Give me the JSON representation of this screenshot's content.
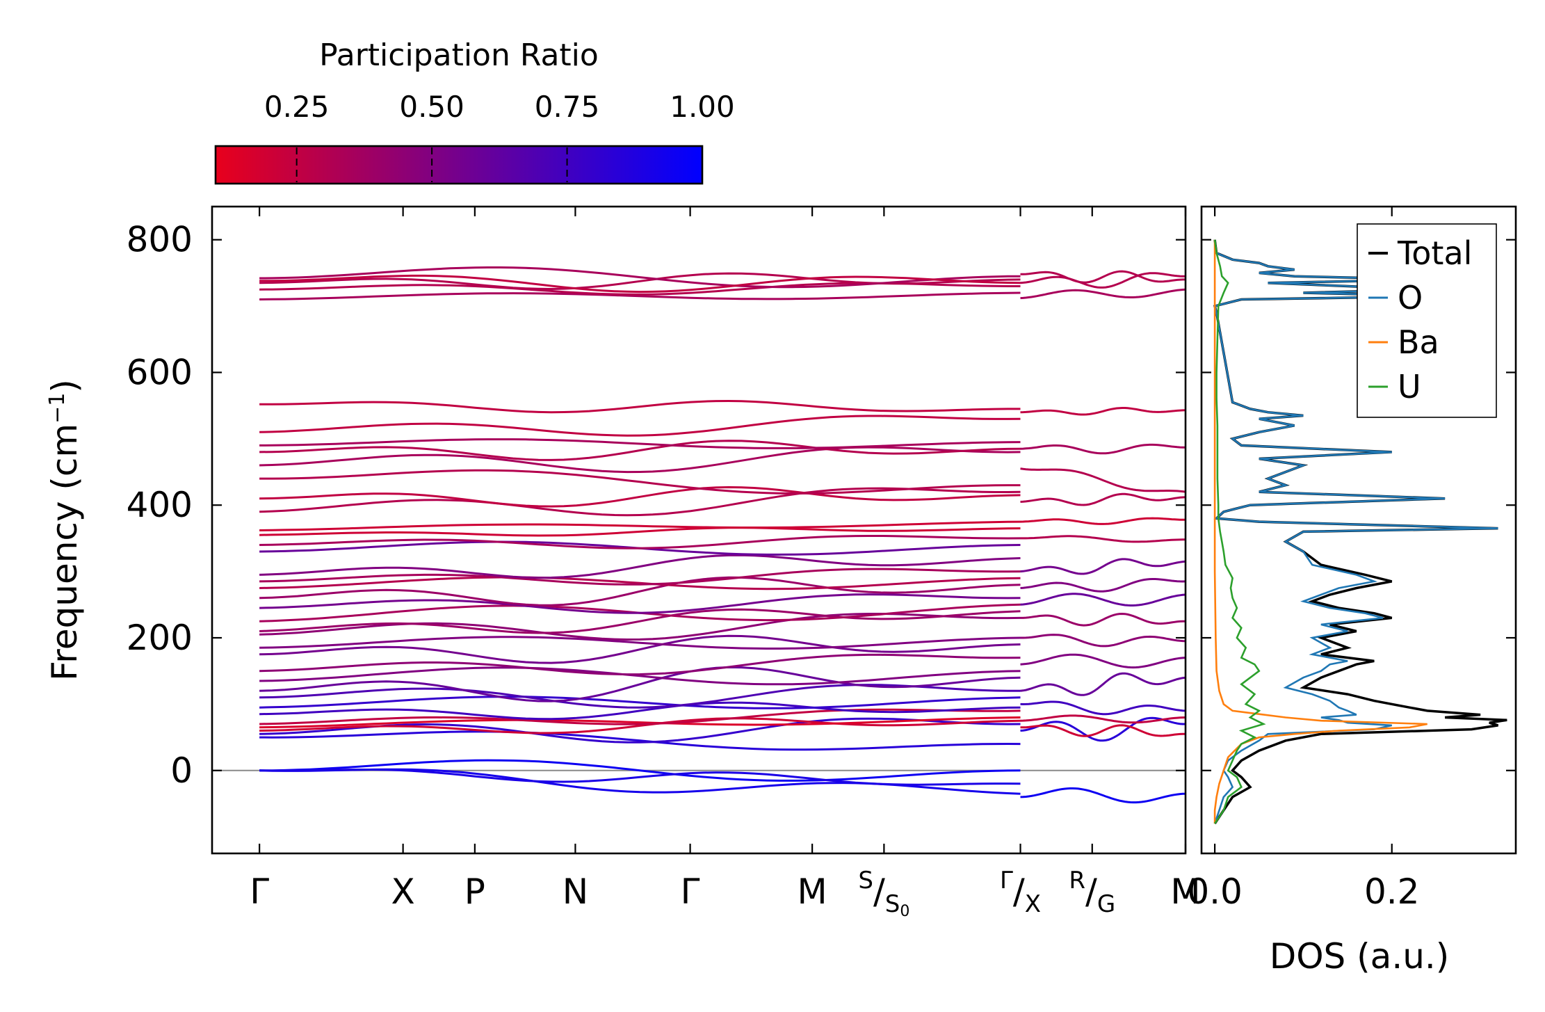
{
  "chart_data": [
    {
      "type": "line",
      "name": "phonon-dispersion",
      "title": "",
      "ylabel": "Frequency (cm",
      "ylabel_sup": "−1",
      "ylabel_close": ")",
      "ylim": [
        -125,
        850
      ],
      "yticks": [
        0,
        200,
        400,
        600,
        800
      ],
      "zero_line": true,
      "path_labels": [
        {
          "label": "Γ",
          "k": 0.0
        },
        {
          "label": "X",
          "k": 1.0
        },
        {
          "label": "P",
          "k": 1.5
        },
        {
          "label": "N",
          "k": 2.2
        },
        {
          "label": "Γ",
          "k": 3.0
        },
        {
          "label": "M",
          "k": 3.85
        },
        {
          "label": "S",
          "sub_label": "S",
          "sub_index": "0",
          "k": 4.35
        },
        {
          "label": "Γ",
          "sub_label": "X",
          "k": 5.3
        },
        {
          "label": "R",
          "sub_label": "G",
          "k": 5.8
        },
        {
          "label": "M",
          "k": 6.45
        }
      ],
      "k_range": [
        -0.33,
        6.45
      ],
      "segments": [
        [
          0.0,
          5.3
        ],
        [
          5.3,
          6.45
        ]
      ],
      "colorbar": {
        "title": "Participation Ratio",
        "range": [
          0.1,
          1.0
        ],
        "ticks": [
          "0.25",
          "0.50",
          "0.75",
          "1.00"
        ],
        "tick_values": [
          0.25,
          0.5,
          0.75,
          1.0
        ],
        "colors": [
          "#e8001c",
          "#0000ff"
        ]
      },
      "bands_segment1": [
        {
          "f0": 0,
          "f1": 0,
          "amp": 20,
          "pr": 0.95
        },
        {
          "f0": 0,
          "f1": -35,
          "amp": 15,
          "pr": 0.92
        },
        {
          "f0": 0,
          "f1": -20,
          "amp": 10,
          "pr": 0.9
        },
        {
          "f0": 50,
          "f1": 40,
          "amp": 15,
          "pr": 0.85
        },
        {
          "f0": 55,
          "f1": 70,
          "amp": 20,
          "pr": 0.8
        },
        {
          "f0": 60,
          "f1": 75,
          "amp": 10,
          "pr": 0.2
        },
        {
          "f0": 65,
          "f1": 80,
          "amp": 8,
          "pr": 0.15
        },
        {
          "f0": 70,
          "f1": 90,
          "amp": 10,
          "pr": 0.25
        },
        {
          "f0": 85,
          "f1": 95,
          "amp": 12,
          "pr": 0.75
        },
        {
          "f0": 95,
          "f1": 110,
          "amp": 15,
          "pr": 0.8
        },
        {
          "f0": 110,
          "f1": 120,
          "amp": 20,
          "pr": 0.7
        },
        {
          "f0": 120,
          "f1": 140,
          "amp": 25,
          "pr": 0.6
        },
        {
          "f0": 135,
          "f1": 150,
          "amp": 20,
          "pr": 0.5
        },
        {
          "f0": 150,
          "f1": 170,
          "amp": 15,
          "pr": 0.45
        },
        {
          "f0": 175,
          "f1": 190,
          "amp": 20,
          "pr": 0.55
        },
        {
          "f0": 185,
          "f1": 200,
          "amp": 15,
          "pr": 0.5
        },
        {
          "f0": 205,
          "f1": 230,
          "amp": 20,
          "pr": 0.45
        },
        {
          "f0": 210,
          "f1": 240,
          "amp": 15,
          "pr": 0.4
        },
        {
          "f0": 225,
          "f1": 250,
          "amp": 20,
          "pr": 0.35
        },
        {
          "f0": 245,
          "f1": 260,
          "amp": 15,
          "pr": 0.55
        },
        {
          "f0": 260,
          "f1": 280,
          "amp": 20,
          "pr": 0.4
        },
        {
          "f0": 275,
          "f1": 290,
          "amp": 15,
          "pr": 0.3
        },
        {
          "f0": 285,
          "f1": 300,
          "amp": 12,
          "pr": 0.35
        },
        {
          "f0": 295,
          "f1": 320,
          "amp": 15,
          "pr": 0.5
        },
        {
          "f0": 330,
          "f1": 340,
          "amp": 15,
          "pr": 0.6
        },
        {
          "f0": 340,
          "f1": 350,
          "amp": 10,
          "pr": 0.35
        },
        {
          "f0": 355,
          "f1": 365,
          "amp": 5,
          "pr": 0.2
        },
        {
          "f0": 362,
          "f1": 375,
          "amp": 6,
          "pr": 0.2
        },
        {
          "f0": 390,
          "f1": 420,
          "amp": 20,
          "pr": 0.3
        },
        {
          "f0": 410,
          "f1": 415,
          "amp": 15,
          "pr": 0.25
        },
        {
          "f0": 440,
          "f1": 430,
          "amp": 20,
          "pr": 0.3
        },
        {
          "f0": 460,
          "f1": 480,
          "amp": 20,
          "pr": 0.35
        },
        {
          "f0": 480,
          "f1": 485,
          "amp": 15,
          "pr": 0.3
        },
        {
          "f0": 490,
          "f1": 495,
          "amp": 10,
          "pr": 0.35
        },
        {
          "f0": 510,
          "f1": 530,
          "amp": 15,
          "pr": 0.25
        },
        {
          "f0": 552,
          "f1": 545,
          "amp": 10,
          "pr": 0.25
        },
        {
          "f0": 710,
          "f1": 720,
          "amp": 8,
          "pr": 0.35
        },
        {
          "f0": 725,
          "f1": 730,
          "amp": 10,
          "pr": 0.3
        },
        {
          "f0": 735,
          "f1": 740,
          "amp": 12,
          "pr": 0.3
        },
        {
          "f0": 742,
          "f1": 745,
          "amp": 20,
          "pr": 0.35
        },
        {
          "f0": 738,
          "f1": 735,
          "amp": 15,
          "pr": 0.25
        }
      ],
      "bands_segment2": [
        {
          "f0": -40,
          "f1": -35,
          "amp": 15,
          "pr": 0.95
        },
        {
          "f0": 60,
          "f1": 70,
          "amp": 20,
          "pr": 0.85
        },
        {
          "f0": 65,
          "f1": 55,
          "amp": 10,
          "pr": 0.2
        },
        {
          "f0": 75,
          "f1": 80,
          "amp": 8,
          "pr": 0.25
        },
        {
          "f0": 100,
          "f1": 90,
          "amp": 10,
          "pr": 0.75
        },
        {
          "f0": 120,
          "f1": 140,
          "amp": 15,
          "pr": 0.6
        },
        {
          "f0": 160,
          "f1": 170,
          "amp": 15,
          "pr": 0.5
        },
        {
          "f0": 200,
          "f1": 195,
          "amp": 10,
          "pr": 0.45
        },
        {
          "f0": 230,
          "f1": 225,
          "amp": 10,
          "pr": 0.4
        },
        {
          "f0": 250,
          "f1": 265,
          "amp": 15,
          "pr": 0.6
        },
        {
          "f0": 275,
          "f1": 285,
          "amp": 10,
          "pr": 0.5
        },
        {
          "f0": 300,
          "f1": 315,
          "amp": 10,
          "pr": 0.55
        },
        {
          "f0": 350,
          "f1": 348,
          "amp": 5,
          "pr": 0.3
        },
        {
          "f0": 375,
          "f1": 378,
          "amp": 5,
          "pr": 0.2
        },
        {
          "f0": 405,
          "f1": 412,
          "amp": 8,
          "pr": 0.3
        },
        {
          "f0": 455,
          "f1": 420,
          "amp": 10,
          "pr": 0.3
        },
        {
          "f0": 485,
          "f1": 487,
          "amp": 8,
          "pr": 0.35
        },
        {
          "f0": 540,
          "f1": 543,
          "amp": 5,
          "pr": 0.25
        },
        {
          "f0": 712,
          "f1": 725,
          "amp": 10,
          "pr": 0.35
        },
        {
          "f0": 735,
          "f1": 745,
          "amp": 12,
          "pr": 0.3
        },
        {
          "f0": 748,
          "f1": 740,
          "amp": 10,
          "pr": 0.3
        }
      ]
    },
    {
      "type": "line",
      "name": "density-of-states",
      "xlabel": "DOS (a.u.)",
      "xlim": [
        -0.015,
        0.34
      ],
      "ylim": [
        -125,
        850
      ],
      "xticks": [
        0.0,
        0.2
      ],
      "xtick_labels": [
        "0.0",
        "0.2"
      ],
      "legend": {
        "placement": "top-right",
        "entries": [
          "Total",
          "O",
          "Ba",
          "U"
        ]
      },
      "series": [
        {
          "name": "Total",
          "color": "#000000",
          "freq": [
            -80,
            -60,
            -40,
            -25,
            -10,
            0,
            15,
            30,
            45,
            55,
            62,
            68,
            72,
            76,
            80,
            84,
            90,
            95,
            105,
            115,
            125,
            140,
            150,
            160,
            165,
            175,
            185,
            200,
            210,
            220,
            230,
            237,
            245,
            255,
            265,
            275,
            285,
            295,
            310,
            330,
            345,
            360,
            365,
            375,
            380,
            390,
            400,
            410,
            420,
            430,
            440,
            460,
            470,
            480,
            490,
            500,
            510,
            520,
            530,
            535,
            540,
            545,
            555,
            690,
            700,
            710,
            715,
            720,
            725,
            735,
            740,
            745,
            750,
            755,
            760,
            765,
            770,
            780,
            800
          ],
          "dos": [
            0,
            0.01,
            0.02,
            0.04,
            0.03,
            0.02,
            0.03,
            0.05,
            0.08,
            0.12,
            0.29,
            0.32,
            0.31,
            0.33,
            0.26,
            0.3,
            0.24,
            0.22,
            0.18,
            0.15,
            0.1,
            0.12,
            0.14,
            0.16,
            0.18,
            0.12,
            0.15,
            0.12,
            0.16,
            0.13,
            0.2,
            0.18,
            0.14,
            0.11,
            0.13,
            0.16,
            0.2,
            0.17,
            0.12,
            0.1,
            0.08,
            0.1,
            0.32,
            0.05,
            0.002,
            0.01,
            0.04,
            0.26,
            0.05,
            0.08,
            0.06,
            0.1,
            0.05,
            0.2,
            0.03,
            0.02,
            0.05,
            0.09,
            0.05,
            0.1,
            0.06,
            0.04,
            0.02,
            0.002,
            0.0,
            0.03,
            0.26,
            0.1,
            0.24,
            0.06,
            0.25,
            0.09,
            0.05,
            0.09,
            0.06,
            0.05,
            0.02,
            0.002,
            0
          ]
        },
        {
          "name": "O",
          "color": "#1f77b4",
          "freq": [
            -80,
            -60,
            -40,
            -25,
            -10,
            0,
            15,
            30,
            45,
            55,
            62,
            68,
            72,
            76,
            80,
            84,
            90,
            95,
            105,
            115,
            125,
            140,
            150,
            160,
            165,
            175,
            185,
            200,
            210,
            220,
            230,
            237,
            245,
            255,
            265,
            275,
            285,
            295,
            310,
            330,
            345,
            360,
            365,
            375,
            380,
            390,
            400,
            410,
            420,
            430,
            440,
            460,
            470,
            480,
            490,
            500,
            510,
            520,
            530,
            535,
            540,
            545,
            555,
            690,
            700,
            710,
            715,
            720,
            725,
            735,
            740,
            745,
            750,
            755,
            760,
            765,
            770,
            780,
            800
          ],
          "dos": [
            0,
            0.005,
            0.01,
            0.02,
            0.015,
            0.01,
            0.015,
            0.03,
            0.05,
            0.06,
            0.18,
            0.2,
            0.15,
            0.14,
            0.12,
            0.16,
            0.15,
            0.14,
            0.13,
            0.11,
            0.08,
            0.1,
            0.12,
            0.13,
            0.15,
            0.11,
            0.13,
            0.11,
            0.15,
            0.12,
            0.19,
            0.17,
            0.13,
            0.1,
            0.12,
            0.14,
            0.18,
            0.16,
            0.11,
            0.1,
            0.08,
            0.1,
            0.32,
            0.05,
            0.002,
            0.01,
            0.04,
            0.26,
            0.05,
            0.08,
            0.06,
            0.1,
            0.05,
            0.2,
            0.03,
            0.02,
            0.05,
            0.09,
            0.05,
            0.1,
            0.06,
            0.04,
            0.02,
            0.002,
            0.0,
            0.03,
            0.26,
            0.1,
            0.24,
            0.06,
            0.25,
            0.09,
            0.05,
            0.09,
            0.06,
            0.05,
            0.02,
            0.002,
            0
          ]
        },
        {
          "name": "Ba",
          "color": "#ff7f0e",
          "freq": [
            -80,
            -60,
            -40,
            -20,
            0,
            20,
            40,
            50,
            55,
            60,
            65,
            70,
            75,
            80,
            85,
            90,
            100,
            120,
            150,
            200,
            300,
            400,
            500,
            600,
            700,
            800
          ],
          "dos": [
            0,
            0.0,
            0.002,
            0.005,
            0.01,
            0.015,
            0.03,
            0.05,
            0.09,
            0.14,
            0.22,
            0.24,
            0.12,
            0.08,
            0.05,
            0.02,
            0.01,
            0.005,
            0.002,
            0.001,
            0,
            0,
            0,
            0,
            0,
            0
          ]
        },
        {
          "name": "U",
          "color": "#2ca02c",
          "freq": [
            -80,
            -60,
            -40,
            -25,
            -10,
            0,
            15,
            30,
            40,
            50,
            60,
            70,
            80,
            90,
            100,
            115,
            130,
            150,
            160,
            170,
            185,
            200,
            215,
            230,
            245,
            260,
            275,
            290,
            310,
            330,
            345,
            360,
            380,
            400,
            440,
            480,
            520,
            560,
            600,
            700,
            720,
            735,
            745,
            760,
            780,
            800
          ],
          "dos": [
            0,
            0.01,
            0.015,
            0.03,
            0.025,
            0.015,
            0.02,
            0.025,
            0.03,
            0.045,
            0.03,
            0.055,
            0.04,
            0.05,
            0.035,
            0.045,
            0.03,
            0.05,
            0.045,
            0.03,
            0.035,
            0.025,
            0.03,
            0.02,
            0.025,
            0.02,
            0.018,
            0.02,
            0.012,
            0.01,
            0.008,
            0.006,
            0.004,
            0.004,
            0.003,
            0.003,
            0.003,
            0.002,
            0.002,
            0.004,
            0.01,
            0.015,
            0.008,
            0.006,
            0.002,
            0
          ]
        }
      ]
    }
  ]
}
